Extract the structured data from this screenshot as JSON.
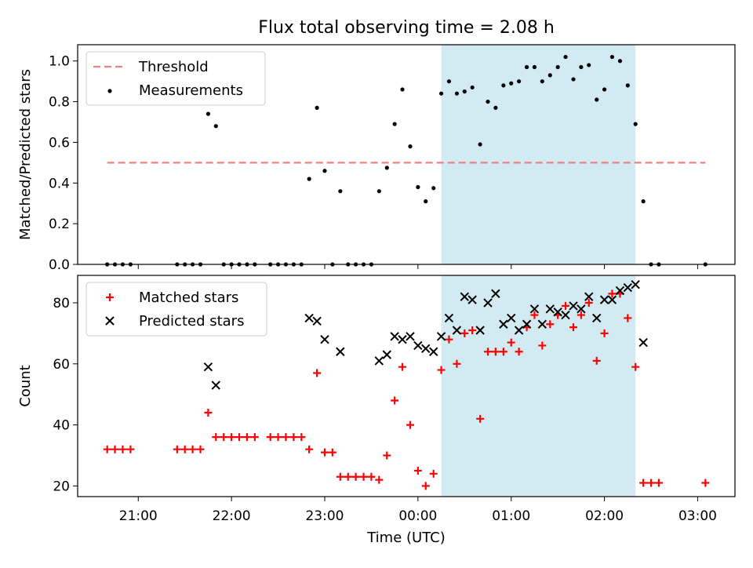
{
  "figure": {
    "title": "Flux total observing time = 2.08 h",
    "xlabel": "Time (UTC)"
  },
  "colors": {
    "threshold": "#f08080",
    "measurements": "#000000",
    "matched": "#ff0000",
    "predicted": "#000000",
    "highlight": "#add8e6"
  },
  "chart_data": [
    {
      "type": "scatter",
      "title": "Flux total observing time = 2.08 h",
      "xlabel": "",
      "ylabel": "Matched/Predicted stars",
      "x_unit": "hours since 21:00 UTC (axis shows clock time)",
      "xlim": [
        -0.65,
        6.4
      ],
      "ylim": [
        0,
        1.08
      ],
      "yticks": [
        0.0,
        0.2,
        0.4,
        0.6,
        0.8,
        1.0
      ],
      "highlight_span": [
        3.25,
        5.333
      ],
      "legend": {
        "position": "upper-left",
        "entries": [
          "Threshold",
          "Measurements"
        ]
      },
      "series": [
        {
          "name": "Threshold",
          "kind": "dashed-line",
          "points": [
            [
              -0.333,
              0.5
            ],
            [
              6.083,
              0.5
            ]
          ]
        },
        {
          "name": "Measurements",
          "kind": "dots",
          "points": [
            [
              -0.333,
              0
            ],
            [
              -0.25,
              0
            ],
            [
              -0.167,
              0
            ],
            [
              -0.083,
              0
            ],
            [
              0.417,
              0
            ],
            [
              0.5,
              0
            ],
            [
              0.583,
              0
            ],
            [
              0.667,
              0
            ],
            [
              0.75,
              0.74
            ],
            [
              0.833,
              0.68
            ],
            [
              0.917,
              0
            ],
            [
              1.0,
              0
            ],
            [
              1.083,
              0
            ],
            [
              1.167,
              0
            ],
            [
              1.25,
              0
            ],
            [
              1.417,
              0
            ],
            [
              1.5,
              0
            ],
            [
              1.583,
              0
            ],
            [
              1.667,
              0
            ],
            [
              1.75,
              0
            ],
            [
              1.833,
              0.42
            ],
            [
              1.917,
              0.77
            ],
            [
              2.0,
              0.46
            ],
            [
              2.083,
              0
            ],
            [
              2.167,
              0.36
            ],
            [
              2.25,
              0
            ],
            [
              2.333,
              0
            ],
            [
              2.417,
              0
            ],
            [
              2.5,
              0
            ],
            [
              2.583,
              0.36
            ],
            [
              2.667,
              0.475
            ],
            [
              2.75,
              0.69
            ],
            [
              2.833,
              0.86
            ],
            [
              2.917,
              0.58
            ],
            [
              3.0,
              0.38
            ],
            [
              3.083,
              0.31
            ],
            [
              3.167,
              0.375
            ],
            [
              3.25,
              0.84
            ],
            [
              3.333,
              0.9
            ],
            [
              3.417,
              0.84
            ],
            [
              3.5,
              0.85
            ],
            [
              3.583,
              0.87
            ],
            [
              3.667,
              0.59
            ],
            [
              3.75,
              0.8
            ],
            [
              3.833,
              0.77
            ],
            [
              3.917,
              0.88
            ],
            [
              4.0,
              0.89
            ],
            [
              4.083,
              0.9
            ],
            [
              4.167,
              0.97
            ],
            [
              4.25,
              0.97
            ],
            [
              4.333,
              0.9
            ],
            [
              4.417,
              0.93
            ],
            [
              4.5,
              0.97
            ],
            [
              4.583,
              1.02
            ],
            [
              4.667,
              0.91
            ],
            [
              4.75,
              0.97
            ],
            [
              4.833,
              0.98
            ],
            [
              4.917,
              0.81
            ],
            [
              5.0,
              0.86
            ],
            [
              5.083,
              1.02
            ],
            [
              5.167,
              1.0
            ],
            [
              5.25,
              0.88
            ],
            [
              5.333,
              0.69
            ],
            [
              5.417,
              0.31
            ],
            [
              5.5,
              0
            ],
            [
              5.583,
              0
            ],
            [
              6.083,
              0
            ]
          ]
        }
      ]
    },
    {
      "type": "scatter",
      "title": "",
      "xlabel": "Time (UTC)",
      "ylabel": "Count",
      "x_unit": "hours since 21:00 UTC (axis shows clock time)",
      "xlim": [
        -0.65,
        6.4
      ],
      "ylim": [
        16.5,
        89
      ],
      "yticks": [
        20,
        40,
        60,
        80
      ],
      "xticks": [
        0,
        1,
        2,
        3,
        4,
        5,
        6
      ],
      "xticklabels": [
        "21:00",
        "22:00",
        "23:00",
        "00:00",
        "01:00",
        "02:00",
        "03:00"
      ],
      "highlight_span": [
        3.25,
        5.333
      ],
      "legend": {
        "position": "upper-left",
        "entries": [
          "Matched stars",
          "Predicted stars"
        ]
      },
      "series": [
        {
          "name": "Matched stars",
          "kind": "plus",
          "points": [
            [
              -0.333,
              32
            ],
            [
              -0.25,
              32
            ],
            [
              -0.167,
              32
            ],
            [
              -0.083,
              32
            ],
            [
              0.417,
              32
            ],
            [
              0.5,
              32
            ],
            [
              0.583,
              32
            ],
            [
              0.667,
              32
            ],
            [
              0.75,
              44
            ],
            [
              0.833,
              36
            ],
            [
              0.917,
              36
            ],
            [
              1.0,
              36
            ],
            [
              1.083,
              36
            ],
            [
              1.167,
              36
            ],
            [
              1.25,
              36
            ],
            [
              1.417,
              36
            ],
            [
              1.5,
              36
            ],
            [
              1.583,
              36
            ],
            [
              1.667,
              36
            ],
            [
              1.75,
              36
            ],
            [
              1.833,
              32
            ],
            [
              1.917,
              57
            ],
            [
              2.0,
              31
            ],
            [
              2.083,
              31
            ],
            [
              2.167,
              23
            ],
            [
              2.25,
              23
            ],
            [
              2.333,
              23
            ],
            [
              2.417,
              23
            ],
            [
              2.5,
              23
            ],
            [
              2.583,
              22
            ],
            [
              2.667,
              30
            ],
            [
              2.75,
              48
            ],
            [
              2.833,
              59
            ],
            [
              2.917,
              40
            ],
            [
              3.0,
              25
            ],
            [
              3.083,
              20
            ],
            [
              3.167,
              24
            ],
            [
              3.25,
              58
            ],
            [
              3.333,
              68
            ],
            [
              3.417,
              60
            ],
            [
              3.5,
              70
            ],
            [
              3.583,
              71
            ],
            [
              3.667,
              42
            ],
            [
              3.75,
              64
            ],
            [
              3.833,
              64
            ],
            [
              3.917,
              64
            ],
            [
              4.0,
              67
            ],
            [
              4.083,
              64
            ],
            [
              4.167,
              72
            ],
            [
              4.25,
              76
            ],
            [
              4.333,
              66
            ],
            [
              4.417,
              73
            ],
            [
              4.5,
              76
            ],
            [
              4.583,
              79
            ],
            [
              4.667,
              72
            ],
            [
              4.75,
              76
            ],
            [
              4.833,
              80
            ],
            [
              4.917,
              61
            ],
            [
              5.0,
              70
            ],
            [
              5.083,
              83
            ],
            [
              5.167,
              83
            ],
            [
              5.25,
              75
            ],
            [
              5.333,
              59
            ],
            [
              5.417,
              21
            ],
            [
              5.5,
              21
            ],
            [
              5.583,
              21
            ],
            [
              6.083,
              21
            ]
          ]
        },
        {
          "name": "Predicted stars",
          "kind": "x",
          "points": [
            [
              0.75,
              59
            ],
            [
              0.833,
              53
            ],
            [
              1.833,
              75
            ],
            [
              1.917,
              74
            ],
            [
              2.0,
              68
            ],
            [
              2.167,
              64
            ],
            [
              2.583,
              61
            ],
            [
              2.667,
              63
            ],
            [
              2.75,
              69
            ],
            [
              2.833,
              68
            ],
            [
              2.917,
              69
            ],
            [
              3.0,
              66
            ],
            [
              3.083,
              65
            ],
            [
              3.167,
              64
            ],
            [
              3.25,
              69
            ],
            [
              3.333,
              75
            ],
            [
              3.417,
              71
            ],
            [
              3.5,
              82
            ],
            [
              3.583,
              81
            ],
            [
              3.667,
              71
            ],
            [
              3.75,
              80
            ],
            [
              3.833,
              83
            ],
            [
              3.917,
              73
            ],
            [
              4.0,
              75
            ],
            [
              4.083,
              71
            ],
            [
              4.167,
              73
            ],
            [
              4.25,
              78
            ],
            [
              4.333,
              73
            ],
            [
              4.417,
              78
            ],
            [
              4.5,
              77
            ],
            [
              4.583,
              76
            ],
            [
              4.667,
              79
            ],
            [
              4.75,
              78
            ],
            [
              4.833,
              82
            ],
            [
              4.917,
              75
            ],
            [
              5.0,
              81
            ],
            [
              5.083,
              81
            ],
            [
              5.167,
              84
            ],
            [
              5.25,
              85
            ],
            [
              5.333,
              86
            ],
            [
              5.417,
              67
            ]
          ]
        }
      ]
    }
  ]
}
